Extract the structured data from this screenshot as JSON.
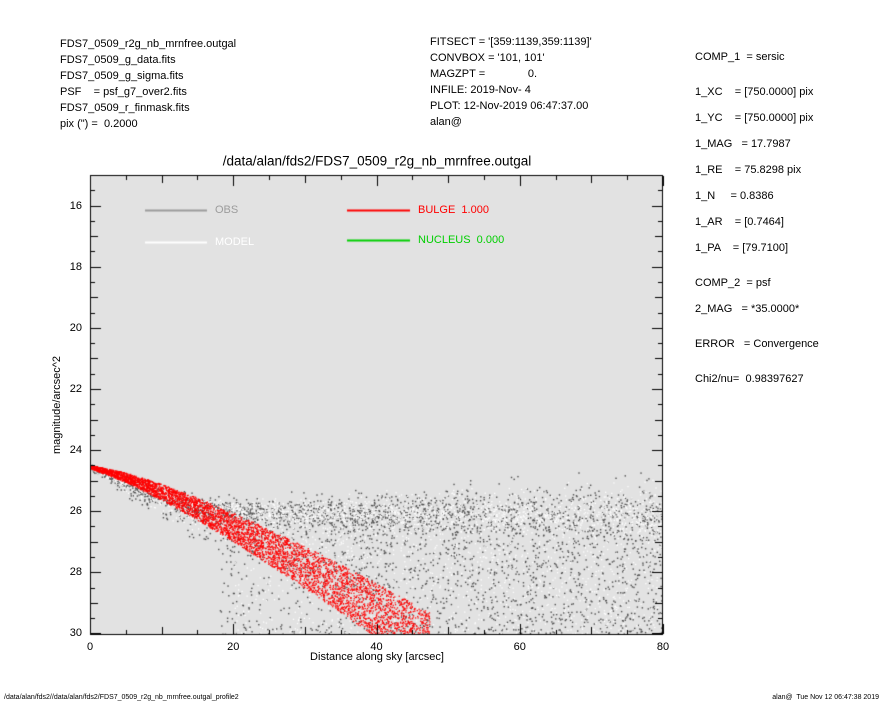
{
  "header_left": {
    "lines": [
      "FDS7_0509_r2g_nb_mrnfree.outgal",
      "FDS7_0509_g_data.fits",
      "FDS7_0509_g_sigma.fits",
      "PSF    = psf_g7_over2.fits",
      "FDS7_0509_r_finmask.fits",
      "pix (\") =  0.2000"
    ]
  },
  "header_middle": {
    "lines": [
      "FITSECT = '[359:1139,359:1139]'",
      "CONVBOX = '101, 101'",
      "MAGZPT =              0.",
      "INFILE: 2019-Nov- 4",
      "PLOT: 12-Nov-2019 06:47:37.00",
      "alan@"
    ]
  },
  "fit_params": {
    "groups": [
      [
        "COMP_1  = sersic"
      ],
      [
        "1_XC    = [750.0000] pix",
        "1_YC    = [750.0000] pix",
        "1_MAG   = 17.7987",
        "1_RE    = 75.8298 pix",
        "1_N     = 0.8386",
        "1_AR    = [0.7464]",
        "1_PA    = [79.7100]"
      ],
      [
        "COMP_2  = psf",
        "2_MAG   = *35.0000*"
      ],
      [
        "ERROR   = Convergence"
      ],
      [
        "Chi2/nu=  0.98397627"
      ]
    ]
  },
  "footer": {
    "left": "/data/alan/fds2//data/alan/fds2/FDS7_0509_r2g_nb_mrnfree.outgal_profile2",
    "right": "alan@  Tue Nov 12 06:47:38 2019"
  },
  "chart_data": {
    "type": "scatter",
    "title": "/data/alan/fds2/FDS7_0509_r2g_nb_mrnfree.outgal",
    "xlabel": "Distance along sky [arcsec]",
    "ylabel": "magnitude/arcsec^2",
    "xlim": [
      0,
      80
    ],
    "ylim": [
      15,
      30.05
    ],
    "y_axis_inverted": true,
    "x_ticks": [
      0,
      20,
      40,
      60,
      80
    ],
    "y_ticks": [
      16,
      18,
      20,
      22,
      24,
      26,
      28,
      30
    ],
    "x_minor_step": 5,
    "y_minor_step": 0.5,
    "plot_background": "#e2e2e2",
    "legend": [
      {
        "name": "obs",
        "label": "OBS",
        "color": "#9c9c9c"
      },
      {
        "name": "model",
        "label": "MODEL",
        "color": "#ffffff"
      },
      {
        "name": "bulge",
        "label": "BULGE  1.000",
        "color": "#ff0000"
      },
      {
        "name": "nucleus",
        "label": "NUCLEUS  0.000",
        "color": "#00cf00"
      }
    ],
    "series": [
      {
        "name": "OBS",
        "style": "scatter",
        "color": "#4d4d4d",
        "profile_x": [
          0,
          2,
          4,
          7,
          10,
          14,
          18,
          25,
          35,
          50,
          65,
          80
        ],
        "profile_mu": [
          24.55,
          24.75,
          24.95,
          25.3,
          25.55,
          25.8,
          25.95,
          26.05,
          26.1,
          26.12,
          26.14,
          26.15
        ],
        "note": "observed profile; asymmetric faint-side scatter grows with radius, clipped at mu~30"
      },
      {
        "name": "MODEL",
        "style": "scatter",
        "color": "#ffffff",
        "profile_x": [
          0,
          2,
          4,
          7,
          10,
          14,
          18,
          25,
          35,
          50,
          65,
          80
        ],
        "profile_mu": [
          24.55,
          24.73,
          24.92,
          25.26,
          25.51,
          25.76,
          25.92,
          26.03,
          26.08,
          26.11,
          26.13,
          26.14
        ]
      },
      {
        "name": "BULGE",
        "style": "scatter-band",
        "color": "#ff0000",
        "amplitude": 1.0,
        "profile_x": [
          0,
          5,
          10,
          15,
          20,
          25,
          30,
          35,
          40,
          45,
          48
        ],
        "profile_mu": [
          24.55,
          24.9,
          25.38,
          25.93,
          26.53,
          27.17,
          27.84,
          28.53,
          29.25,
          30.0,
          30.46
        ],
        "note": "sersic bulge model band; width fans out from ~0.1 mag at r=0 to ~2 mag near r=45"
      },
      {
        "name": "NUCLEUS",
        "style": "none",
        "color": "#00cf00",
        "amplitude": 0.0,
        "profile_x": [],
        "profile_mu": []
      }
    ]
  }
}
